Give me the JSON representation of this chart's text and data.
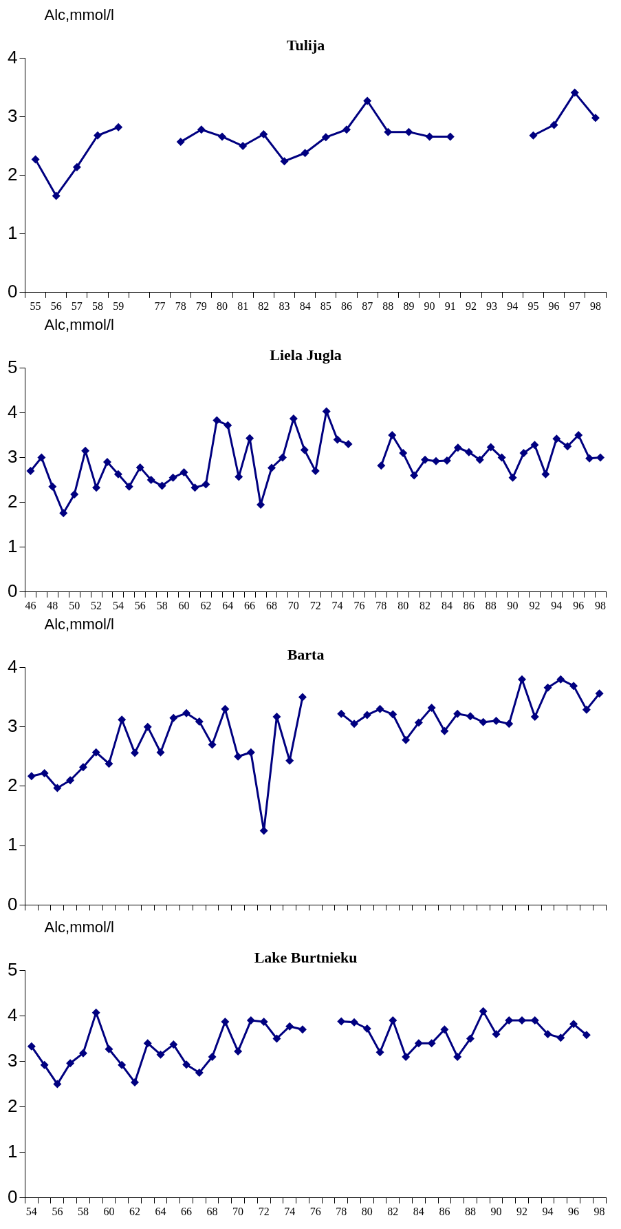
{
  "chart_data": [
    {
      "type": "line",
      "title": "Tulija",
      "ylabel": "Alc,mmol/l",
      "categories": [
        "55",
        "56",
        "57",
        "58",
        "59",
        null,
        "77",
        "78",
        "79",
        "80",
        "81",
        "82",
        "83",
        "84",
        "85",
        "86",
        "87",
        "88",
        "89",
        "90",
        "91",
        "92",
        "93",
        "94",
        "95",
        "96",
        "97",
        "98"
      ],
      "series": [
        {
          "color": "#000080",
          "values": [
            2.27,
            1.65,
            2.14,
            2.68,
            2.82,
            null,
            null,
            2.57,
            2.78,
            2.66,
            2.5,
            2.7,
            2.24,
            2.38,
            2.65,
            2.78,
            3.27,
            2.74,
            2.74,
            2.66,
            2.66,
            null,
            null,
            null,
            2.68,
            2.86,
            3.41,
            2.98
          ]
        }
      ],
      "ylim": [
        0,
        4
      ],
      "yticks": [
        0,
        1,
        2,
        3,
        4
      ],
      "grid": false,
      "legend": false,
      "marker": "diamond",
      "line_style": "solid"
    },
    {
      "type": "line",
      "title": "Liela Jugla",
      "ylabel": "Alc,mmol/l",
      "categories": [
        "46",
        null,
        "48",
        null,
        "50",
        null,
        "52",
        null,
        "54",
        null,
        "56",
        null,
        "58",
        null,
        "60",
        null,
        "62",
        null,
        "64",
        null,
        "66",
        null,
        "68",
        null,
        "70",
        null,
        "72",
        null,
        "74",
        null,
        "76",
        null,
        "78",
        null,
        "80",
        null,
        "82",
        null,
        "84",
        null,
        "86",
        null,
        "88",
        null,
        "90",
        null,
        "92",
        null,
        "94",
        null,
        "96",
        null,
        "98"
      ],
      "series": [
        {
          "color": "#000080",
          "values": [
            2.7,
            3.0,
            2.35,
            1.76,
            2.18,
            3.15,
            2.33,
            2.9,
            2.63,
            2.35,
            2.78,
            2.5,
            2.37,
            2.55,
            2.67,
            2.33,
            2.4,
            3.83,
            3.72,
            2.57,
            3.43,
            1.95,
            2.77,
            3.0,
            3.87,
            3.17,
            2.7,
            4.03,
            3.4,
            3.3,
            null,
            null,
            2.82,
            3.5,
            3.1,
            2.6,
            2.95,
            2.92,
            2.93,
            3.22,
            3.12,
            2.95,
            3.23,
            3.0,
            2.55,
            3.1,
            3.28,
            2.63,
            3.42,
            3.25,
            3.5,
            2.98,
            3.0
          ]
        }
      ],
      "ylim": [
        0,
        5
      ],
      "yticks": [
        0,
        1,
        2,
        3,
        4,
        5
      ],
      "grid": false,
      "legend": false,
      "marker": "diamond",
      "line_style": "solid"
    },
    {
      "type": "line",
      "title": "Barta",
      "ylabel": "Alc,mmol/l",
      "categories": [
        null,
        null,
        null,
        null,
        null,
        null,
        null,
        null,
        null,
        null,
        null,
        null,
        null,
        null,
        null,
        null,
        null,
        null,
        null,
        null,
        null,
        null,
        null,
        null,
        null,
        null,
        null,
        null,
        null,
        null,
        null,
        null,
        null,
        null,
        null,
        null,
        null,
        null,
        null,
        null,
        null,
        null,
        null,
        null,
        null
      ],
      "series": [
        {
          "color": "#000080",
          "values": [
            2.17,
            2.22,
            1.97,
            2.1,
            2.32,
            2.57,
            2.38,
            3.12,
            2.56,
            3.0,
            2.57,
            3.15,
            3.23,
            3.09,
            2.7,
            3.3,
            2.5,
            2.57,
            1.25,
            3.17,
            2.43,
            3.5,
            null,
            null,
            3.22,
            3.05,
            3.2,
            3.3,
            3.21,
            2.78,
            3.07,
            3.32,
            2.93,
            3.22,
            3.18,
            3.08,
            3.1,
            3.05,
            3.8,
            3.17,
            3.66,
            3.8,
            3.69,
            3.29,
            3.56
          ]
        }
      ],
      "ylim": [
        0,
        4
      ],
      "yticks": [
        0,
        1,
        2,
        3,
        4
      ],
      "tick_labels": "y",
      "grid": false,
      "legend": false,
      "marker": "diamond",
      "line_style": "solid"
    },
    {
      "type": "line",
      "title": "Lake Burtnieku",
      "ylabel": "Alc,mmol/l",
      "categories": [
        "54",
        null,
        "56",
        null,
        "58",
        null,
        "60",
        null,
        "62",
        null,
        "64",
        null,
        "66",
        null,
        "68",
        null,
        "70",
        null,
        "72",
        null,
        "74",
        null,
        "76",
        null,
        "78",
        null,
        "80",
        null,
        "82",
        null,
        "84",
        null,
        "86",
        null,
        "88",
        null,
        "90",
        null,
        "92",
        null,
        "94",
        null,
        "96",
        null,
        "98"
      ],
      "series": [
        {
          "color": "#000080",
          "values": [
            3.33,
            2.92,
            2.5,
            2.96,
            3.18,
            4.07,
            3.27,
            2.92,
            2.54,
            3.4,
            3.15,
            3.37,
            2.93,
            2.75,
            3.1,
            3.87,
            3.22,
            3.9,
            3.87,
            3.5,
            3.77,
            3.7,
            null,
            null,
            3.88,
            3.86,
            3.72,
            3.2,
            3.9,
            3.1,
            3.4,
            3.4,
            3.7,
            3.1,
            3.5,
            4.1,
            3.6,
            3.9,
            3.9,
            3.9,
            3.6,
            3.52,
            3.82,
            3.58,
            null
          ]
        }
      ],
      "ylim": [
        0,
        5
      ],
      "yticks": [
        0,
        1,
        2,
        3,
        4,
        5
      ],
      "grid": false,
      "legend": false,
      "marker": "diamond",
      "line_style": "solid"
    }
  ]
}
